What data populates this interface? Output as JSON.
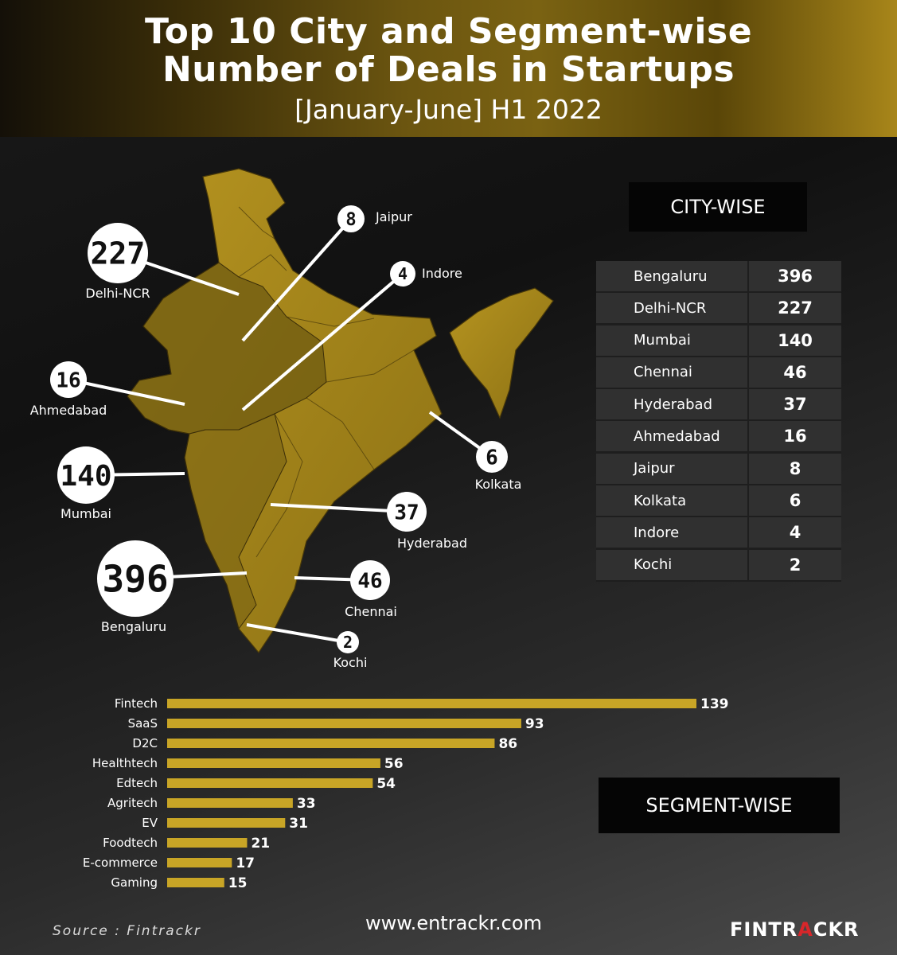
{
  "header": {
    "title_line1": "Top 10 City and Segment-wise",
    "title_line2": "Number of Deals in Startups",
    "subtitle": "[January-June] H1 2022"
  },
  "labels": {
    "city_wise": "CITY-WISE",
    "segment_wise": "SEGMENT-WISE"
  },
  "chart_data": [
    {
      "type": "table",
      "title": "CITY-WISE",
      "rows": [
        {
          "city": "Bengaluru",
          "deals": 396
        },
        {
          "city": "Delhi-NCR",
          "deals": 227
        },
        {
          "city": "Mumbai",
          "deals": 140
        },
        {
          "city": "Chennai",
          "deals": 46
        },
        {
          "city": "Hyderabad",
          "deals": 37
        },
        {
          "city": "Ahmedabad",
          "deals": 16
        },
        {
          "city": "Jaipur",
          "deals": 8
        },
        {
          "city": "Kolkata",
          "deals": 6
        },
        {
          "city": "Indore",
          "deals": 4
        },
        {
          "city": "Kochi",
          "deals": 2
        }
      ]
    },
    {
      "type": "bar",
      "orientation": "horizontal",
      "title": "SEGMENT-WISE",
      "categories": [
        "Fintech",
        "SaaS",
        "D2C",
        "Healthtech",
        "Edtech",
        "Agritech",
        "EV",
        "Foodtech",
        "E-commerce",
        "Gaming"
      ],
      "values": [
        139,
        93,
        86,
        56,
        54,
        33,
        31,
        21,
        17,
        15
      ],
      "xlim": [
        0,
        139
      ],
      "grid": false,
      "colors": {
        "bar": "#c8a526"
      }
    }
  ],
  "map": {
    "fill": "#a8891c",
    "callouts": [
      {
        "city": "Delhi-NCR",
        "value": "227"
      },
      {
        "city": "Jaipur",
        "value": "8"
      },
      {
        "city": "Indore",
        "value": "4"
      },
      {
        "city": "Ahmedabad",
        "value": "16"
      },
      {
        "city": "Mumbai",
        "value": "140"
      },
      {
        "city": "Kolkata",
        "value": "6"
      },
      {
        "city": "Hyderabad",
        "value": "37"
      },
      {
        "city": "Bengaluru",
        "value": "396"
      },
      {
        "city": "Chennai",
        "value": "46"
      },
      {
        "city": "Kochi",
        "value": "2"
      }
    ]
  },
  "footer": {
    "source": "Source : Fintrackr",
    "url": "www.entrackr.com",
    "logo_a": "FINTR",
    "logo_b": "A",
    "logo_c": "CKR"
  }
}
